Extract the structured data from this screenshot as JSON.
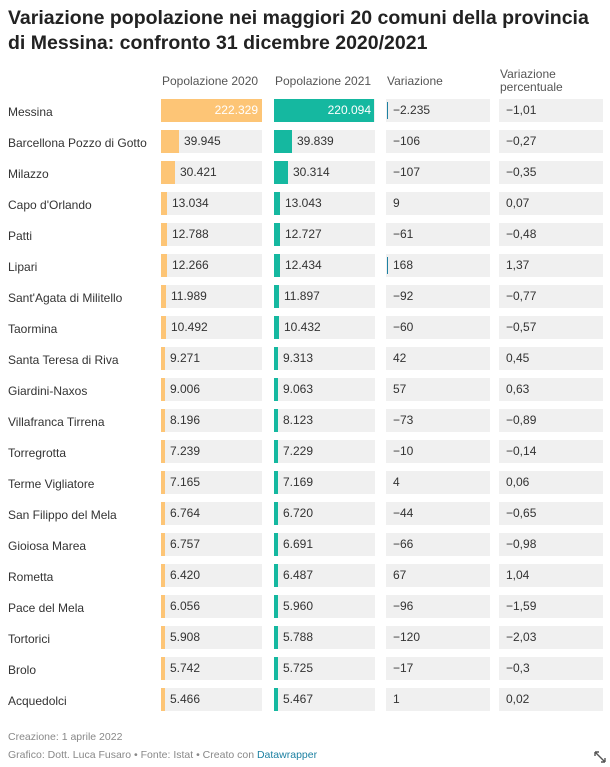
{
  "chart_data": {
    "type": "table",
    "title": "Variazione popolazione nei maggiori 20 comuni della provincia di Messina: confronto 31 dicembre 2020/2021",
    "columns": [
      "",
      "Popolazione 2020",
      "Popolazione 2021",
      "Variazione",
      "Variazione percentuale"
    ],
    "rows": [
      {
        "comune": "Messina",
        "pop2020": 222329,
        "pop2021": 220094,
        "pop2020_label": "222.329",
        "pop2021_label": "220.094",
        "var": "-2.235",
        "varpct": "-1,01"
      },
      {
        "comune": "Barcellona Pozzo di Gotto",
        "pop2020": 39945,
        "pop2021": 39839,
        "pop2020_label": "39.945",
        "pop2021_label": "39.839",
        "var": "-106",
        "varpct": "-0,27"
      },
      {
        "comune": "Milazzo",
        "pop2020": 30421,
        "pop2021": 30314,
        "pop2020_label": "30.421",
        "pop2021_label": "30.314",
        "var": "-107",
        "varpct": "-0,35"
      },
      {
        "comune": "Capo d'Orlando",
        "pop2020": 13034,
        "pop2021": 13043,
        "pop2020_label": "13.034",
        "pop2021_label": "13.043",
        "var": "9",
        "varpct": "0,07"
      },
      {
        "comune": "Patti",
        "pop2020": 12788,
        "pop2021": 12727,
        "pop2020_label": "12.788",
        "pop2021_label": "12.727",
        "var": "-61",
        "varpct": "-0,48"
      },
      {
        "comune": "Lipari",
        "pop2020": 12266,
        "pop2021": 12434,
        "pop2020_label": "12.266",
        "pop2021_label": "12.434",
        "var": "168",
        "varpct": "1,37"
      },
      {
        "comune": "Sant'Agata di Militello",
        "pop2020": 11989,
        "pop2021": 11897,
        "pop2020_label": "11.989",
        "pop2021_label": "11.897",
        "var": "-92",
        "varpct": "-0,77"
      },
      {
        "comune": "Taormina",
        "pop2020": 10492,
        "pop2021": 10432,
        "pop2020_label": "10.492",
        "pop2021_label": "10.432",
        "var": "-60",
        "varpct": "-0,57"
      },
      {
        "comune": "Santa Teresa di Riva",
        "pop2020": 9271,
        "pop2021": 9313,
        "pop2020_label": "9.271",
        "pop2021_label": "9.313",
        "var": "42",
        "varpct": "0,45"
      },
      {
        "comune": "Giardini-Naxos",
        "pop2020": 9006,
        "pop2021": 9063,
        "pop2020_label": "9.006",
        "pop2021_label": "9.063",
        "var": "57",
        "varpct": "0,63"
      },
      {
        "comune": "Villafranca Tirrena",
        "pop2020": 8196,
        "pop2021": 8123,
        "pop2020_label": "8.196",
        "pop2021_label": "8.123",
        "var": "-73",
        "varpct": "-0,89"
      },
      {
        "comune": "Torregrotta",
        "pop2020": 7239,
        "pop2021": 7229,
        "pop2020_label": "7.239",
        "pop2021_label": "7.229",
        "var": "-10",
        "varpct": "-0,14"
      },
      {
        "comune": "Terme Vigliatore",
        "pop2020": 7165,
        "pop2021": 7169,
        "pop2020_label": "7.165",
        "pop2021_label": "7.169",
        "var": "4",
        "varpct": "0,06"
      },
      {
        "comune": "San Filippo del Mela",
        "pop2020": 6764,
        "pop2021": 6720,
        "pop2020_label": "6.764",
        "pop2021_label": "6.720",
        "var": "-44",
        "varpct": "-0,65"
      },
      {
        "comune": "Gioiosa Marea",
        "pop2020": 6757,
        "pop2021": 6691,
        "pop2020_label": "6.757",
        "pop2021_label": "6.691",
        "var": "-66",
        "varpct": "-0,98"
      },
      {
        "comune": "Rometta",
        "pop2020": 6420,
        "pop2021": 6487,
        "pop2020_label": "6.420",
        "pop2021_label": "6.487",
        "var": "67",
        "varpct": "1,04"
      },
      {
        "comune": "Pace del Mela",
        "pop2020": 6056,
        "pop2021": 5960,
        "pop2020_label": "6.056",
        "pop2021_label": "5.960",
        "var": "-96",
        "varpct": "-1,59"
      },
      {
        "comune": "Tortorici",
        "pop2020": 5908,
        "pop2021": 5788,
        "pop2020_label": "5.908",
        "pop2021_label": "5.788",
        "var": "-120",
        "varpct": "-2,03"
      },
      {
        "comune": "Brolo",
        "pop2020": 5742,
        "pop2021": 5725,
        "pop2020_label": "5.742",
        "pop2021_label": "5.725",
        "var": "-17",
        "varpct": "-0,3"
      },
      {
        "comune": "Acquedolci",
        "pop2020": 5466,
        "pop2021": 5467,
        "pop2020_label": "5.466",
        "pop2021_label": "5.467",
        "var": "1",
        "varpct": "0,02"
      }
    ],
    "colors": {
      "pop2020": "#fdc576",
      "pop2021": "#15b8a0",
      "variazione": "#1d81a2",
      "cell_bg": "#f0f0f0"
    }
  },
  "footer": {
    "created": "Creazione: 1 aprile 2022",
    "source_prefix": "Grafico: Dott. Luca Fusaro • Fonte: Istat • Creato con ",
    "tool": "Datawrapper"
  }
}
